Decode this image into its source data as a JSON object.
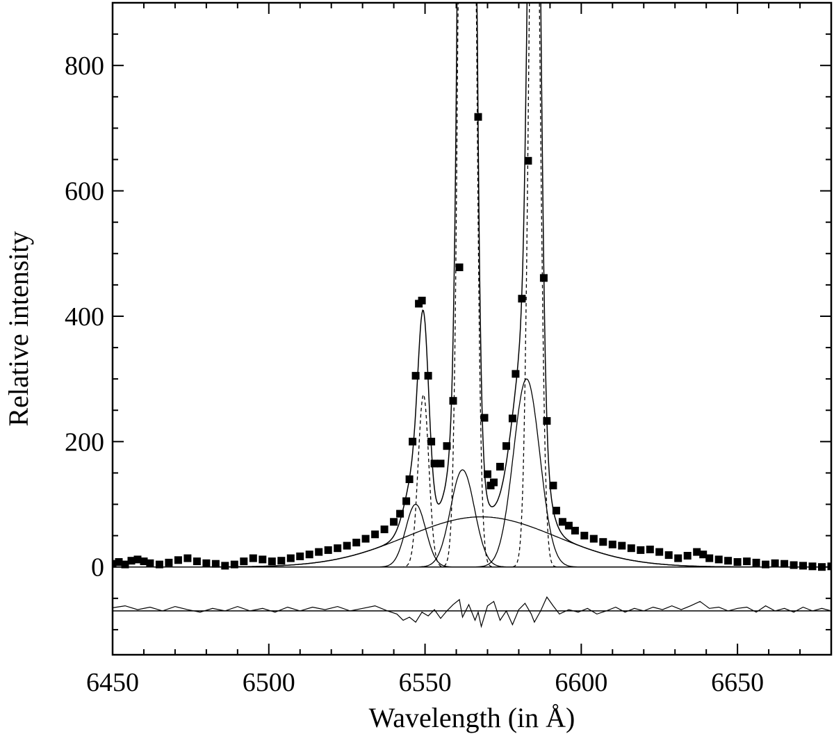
{
  "chart_data": {
    "type": "line",
    "title": "",
    "xlabel": "Wavelength (in Å)",
    "ylabel": "Relative intensity",
    "xlim": [
      6450,
      6680
    ],
    "ylim": [
      -140,
      900
    ],
    "xticks": [
      6450,
      6500,
      6550,
      6600,
      6650
    ],
    "yticks": [
      0,
      200,
      400,
      600,
      800
    ],
    "grid": false,
    "legend": "none",
    "observed_points": [
      [
        6450,
        5
      ],
      [
        6452,
        8
      ],
      [
        6454,
        4
      ],
      [
        6456,
        10
      ],
      [
        6458,
        12
      ],
      [
        6460,
        9
      ],
      [
        6462,
        6
      ],
      [
        6465,
        4
      ],
      [
        6468,
        7
      ],
      [
        6471,
        11
      ],
      [
        6474,
        14
      ],
      [
        6477,
        9
      ],
      [
        6480,
        6
      ],
      [
        6483,
        5
      ],
      [
        6486,
        2
      ],
      [
        6489,
        4
      ],
      [
        6492,
        9
      ],
      [
        6495,
        14
      ],
      [
        6498,
        12
      ],
      [
        6501,
        9
      ],
      [
        6504,
        10
      ],
      [
        6507,
        14
      ],
      [
        6510,
        17
      ],
      [
        6513,
        20
      ],
      [
        6516,
        24
      ],
      [
        6519,
        27
      ],
      [
        6522,
        30
      ],
      [
        6525,
        34
      ],
      [
        6528,
        39
      ],
      [
        6531,
        45
      ],
      [
        6534,
        52
      ],
      [
        6537,
        60
      ],
      [
        6540,
        72
      ],
      [
        6542,
        85
      ],
      [
        6544,
        105
      ],
      [
        6545,
        140
      ],
      [
        6546,
        200
      ],
      [
        6547,
        305
      ],
      [
        6548,
        420
      ],
      [
        6549,
        425
      ],
      [
        6551,
        305
      ],
      [
        6552,
        200
      ],
      [
        6553,
        165
      ],
      [
        6555,
        165
      ],
      [
        6557,
        193
      ],
      [
        6559,
        265
      ],
      [
        6561,
        478
      ],
      [
        6567,
        718
      ],
      [
        6569,
        238
      ],
      [
        6570,
        148
      ],
      [
        6571,
        130
      ],
      [
        6572,
        135
      ],
      [
        6574,
        160
      ],
      [
        6576,
        193
      ],
      [
        6578,
        237
      ],
      [
        6579,
        308
      ],
      [
        6581,
        428
      ],
      [
        6583,
        648
      ],
      [
        6588,
        461
      ],
      [
        6589,
        233
      ],
      [
        6591,
        130
      ],
      [
        6592,
        90
      ],
      [
        6594,
        72
      ],
      [
        6596,
        66
      ],
      [
        6598,
        58
      ],
      [
        6601,
        50
      ],
      [
        6604,
        45
      ],
      [
        6607,
        40
      ],
      [
        6610,
        36
      ],
      [
        6613,
        34
      ],
      [
        6616,
        30
      ],
      [
        6619,
        27
      ],
      [
        6622,
        28
      ],
      [
        6625,
        24
      ],
      [
        6628,
        19
      ],
      [
        6631,
        14
      ],
      [
        6634,
        18
      ],
      [
        6637,
        24
      ],
      [
        6639,
        20
      ],
      [
        6641,
        14
      ],
      [
        6644,
        12
      ],
      [
        6647,
        10
      ],
      [
        6650,
        8
      ],
      [
        6653,
        9
      ],
      [
        6656,
        7
      ],
      [
        6659,
        4
      ],
      [
        6662,
        6
      ],
      [
        6665,
        5
      ],
      [
        6668,
        3
      ],
      [
        6671,
        2
      ],
      [
        6674,
        1
      ],
      [
        6677,
        0
      ],
      [
        6680,
        1
      ]
    ],
    "components": {
      "broad": {
        "center": 6568,
        "amplitude": 80,
        "sigma": 24
      },
      "narrow_dashed": [
        {
          "center": 6549.5,
          "amplitude": 275,
          "sigma": 1.7
        },
        {
          "center": 6563.5,
          "amplitude": 3000,
          "sigma": 1.9
        },
        {
          "center": 6585,
          "amplitude": 1400,
          "sigma": 1.7
        }
      ],
      "intermediate_solid": [
        {
          "center": 6547,
          "amplitude": 100,
          "sigma": 3.2
        },
        {
          "center": 6562,
          "amplitude": 155,
          "sigma": 3.8
        },
        {
          "center": 6582.5,
          "amplitude": 300,
          "sigma": 4.2
        }
      ]
    },
    "residuals": {
      "offset": -70,
      "points": [
        [
          6450,
          -65
        ],
        [
          6454,
          -62
        ],
        [
          6458,
          -68
        ],
        [
          6462,
          -64
        ],
        [
          6466,
          -70
        ],
        [
          6470,
          -63
        ],
        [
          6474,
          -68
        ],
        [
          6478,
          -72
        ],
        [
          6482,
          -66
        ],
        [
          6486,
          -70
        ],
        [
          6490,
          -63
        ],
        [
          6494,
          -70
        ],
        [
          6498,
          -66
        ],
        [
          6502,
          -72
        ],
        [
          6506,
          -64
        ],
        [
          6510,
          -70
        ],
        [
          6514,
          -64
        ],
        [
          6518,
          -68
        ],
        [
          6522,
          -63
        ],
        [
          6526,
          -70
        ],
        [
          6530,
          -66
        ],
        [
          6534,
          -62
        ],
        [
          6538,
          -70
        ],
        [
          6541,
          -75
        ],
        [
          6543,
          -85
        ],
        [
          6545,
          -80
        ],
        [
          6547,
          -88
        ],
        [
          6549,
          -72
        ],
        [
          6551,
          -78
        ],
        [
          6553,
          -68
        ],
        [
          6555,
          -82
        ],
        [
          6557,
          -70
        ],
        [
          6559,
          -60
        ],
        [
          6561,
          -52
        ],
        [
          6562,
          -80
        ],
        [
          6564,
          -60
        ],
        [
          6566,
          -85
        ],
        [
          6567,
          -72
        ],
        [
          6568,
          -95
        ],
        [
          6570,
          -62
        ],
        [
          6572,
          -55
        ],
        [
          6574,
          -85
        ],
        [
          6576,
          -70
        ],
        [
          6578,
          -92
        ],
        [
          6580,
          -68
        ],
        [
          6582,
          -58
        ],
        [
          6584,
          -75
        ],
        [
          6585,
          -88
        ],
        [
          6587,
          -70
        ],
        [
          6589,
          -48
        ],
        [
          6591,
          -62
        ],
        [
          6593,
          -75
        ],
        [
          6596,
          -68
        ],
        [
          6599,
          -72
        ],
        [
          6602,
          -66
        ],
        [
          6605,
          -75
        ],
        [
          6608,
          -70
        ],
        [
          6611,
          -64
        ],
        [
          6614,
          -72
        ],
        [
          6617,
          -66
        ],
        [
          6620,
          -70
        ],
        [
          6623,
          -64
        ],
        [
          6626,
          -68
        ],
        [
          6629,
          -62
        ],
        [
          6632,
          -68
        ],
        [
          6635,
          -62
        ],
        [
          6638,
          -55
        ],
        [
          6641,
          -66
        ],
        [
          6644,
          -64
        ],
        [
          6647,
          -70
        ],
        [
          6650,
          -66
        ],
        [
          6653,
          -64
        ],
        [
          6656,
          -72
        ],
        [
          6659,
          -62
        ],
        [
          6662,
          -70
        ],
        [
          6665,
          -66
        ],
        [
          6668,
          -72
        ],
        [
          6671,
          -64
        ],
        [
          6674,
          -70
        ],
        [
          6677,
          -66
        ],
        [
          6680,
          -70
        ]
      ]
    }
  }
}
